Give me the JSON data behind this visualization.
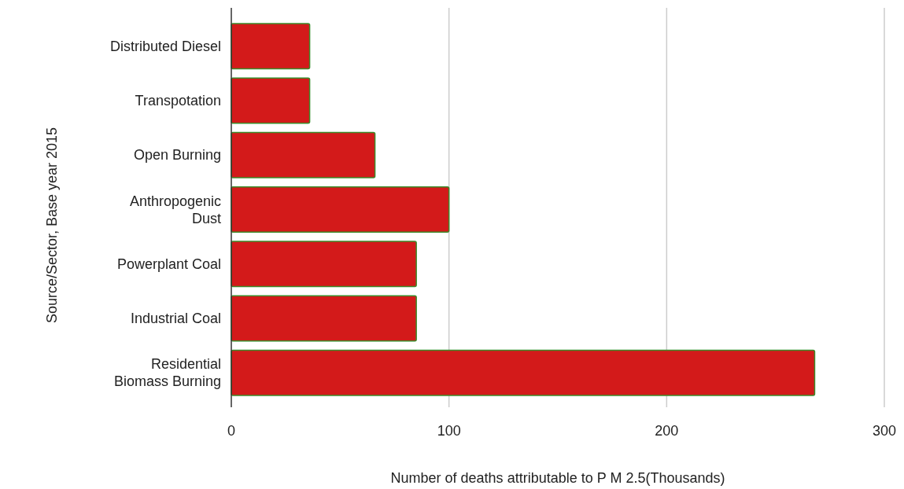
{
  "chart_data": {
    "type": "bar",
    "orientation": "horizontal",
    "categories": [
      "Distributed Diesel",
      "Transpotation",
      "Open Burning",
      "Anthropogenic\nDust",
      "Powerplant Coal",
      "Industrial Coal",
      "Residential\nBiomass Burning"
    ],
    "values": [
      36,
      36,
      66,
      100,
      85,
      85,
      268
    ],
    "color": "#d31a1a",
    "xlim": [
      0,
      300
    ],
    "xticks": [
      0,
      100,
      200,
      300
    ],
    "grid": "x",
    "xlabel": "Number of deaths attributable to P M 2.5(Thousands)",
    "ylabel": "Source/Sector, Base year 2015"
  }
}
